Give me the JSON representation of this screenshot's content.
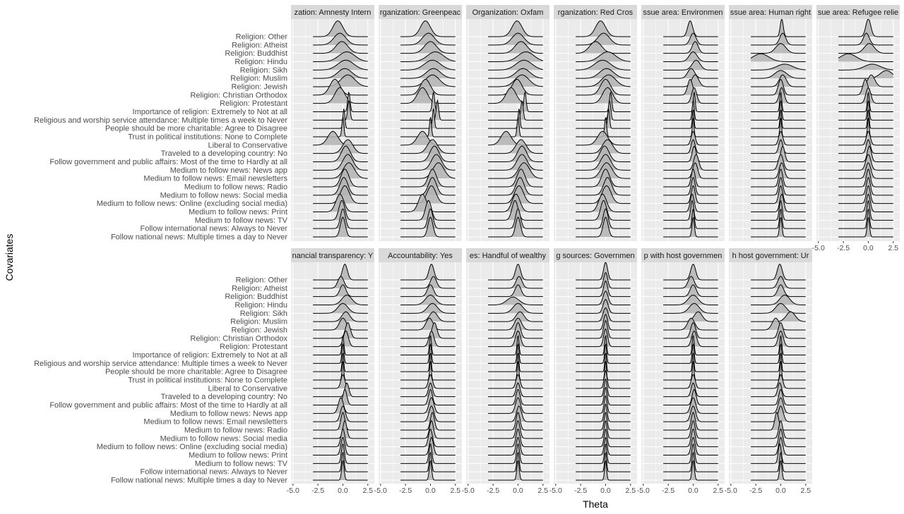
{
  "chart_data": {
    "type": "ridgeline",
    "xlabel": "Theta",
    "ylabel": "Covariates",
    "xlim": [
      -5.0,
      2.5
    ],
    "xticks": [
      "-5.0",
      "-2.5",
      "0.0",
      "2.5"
    ],
    "covariates": [
      "Religion: Other",
      "Religion: Atheist",
      "Religion: Buddhist",
      "Religion: Hindu",
      "Religion: Sikh",
      "Religion: Muslim",
      "Religion: Jewish",
      "Religion: Christian Orthodox",
      "Religion: Protestant",
      "Importance of religion: Extremely to Not at all",
      "Religious and worship service attendance: Multiple times a week to Never",
      "People should be more charitable: Agree to Disagree",
      "Trust in political institutions: None to Complete",
      "Liberal to Conservative",
      "Traveled to a developing country: No",
      "Follow government and public affairs: Most of the time to Hardly at all",
      "Medium to follow news: News app",
      "Medium to follow news: Email newsletters",
      "Medium to follow news: Radio",
      "Medium to follow news: Social media",
      "Medium to follow news: Online (excluding social media)",
      "Medium to follow news: Print",
      "Medium to follow news: TV",
      "Follow international news: Always to Never",
      "Follow national news: Multiple times a day to Never"
    ],
    "panels": [
      {
        "label": "zation: Amnesty Intern",
        "row": 0,
        "col": 0,
        "peaks": [
          -0.5,
          -0.3,
          -0.1,
          0.4,
          0.3,
          0.2,
          0.5,
          -0.8,
          -0.3,
          0.6,
          0.6,
          0.1,
          0.0,
          -1.0,
          0.5,
          0.3,
          0.5,
          0.6,
          0.2,
          0.1,
          0.2,
          -0.3,
          -0.1,
          0.0,
          0.0
        ],
        "widths": [
          0.5,
          0.6,
          0.6,
          0.8,
          0.8,
          0.7,
          0.7,
          0.5,
          0.5,
          0.12,
          0.12,
          0.1,
          0.1,
          0.5,
          0.5,
          0.45,
          0.5,
          0.55,
          0.4,
          0.4,
          0.45,
          0.4,
          0.3,
          0.25,
          0.25
        ],
        "heights": [
          0.8,
          0.6,
          0.6,
          0.5,
          0.5,
          0.5,
          0.6,
          0.8,
          0.8,
          1.0,
          1.0,
          1.0,
          1.0,
          0.7,
          0.7,
          0.8,
          0.8,
          0.8,
          0.9,
          0.9,
          0.9,
          0.9,
          1.0,
          1.0,
          1.0
        ]
      },
      {
        "label": "rganization: Greenpeac",
        "row": 0,
        "col": 1,
        "peaks": [
          -0.5,
          -0.2,
          0.0,
          0.5,
          0.2,
          0.3,
          0.2,
          -0.5,
          -0.8,
          0.3,
          0.7,
          0.3,
          0.0,
          -0.8,
          0.2,
          0.4,
          0.6,
          0.8,
          0.2,
          0.2,
          0.1,
          -0.8,
          -0.2,
          0.0,
          0.0
        ],
        "widths": [
          0.5,
          0.6,
          0.6,
          0.8,
          0.8,
          0.7,
          0.7,
          0.5,
          0.5,
          0.12,
          0.12,
          0.1,
          0.1,
          0.5,
          0.5,
          0.45,
          0.5,
          0.55,
          0.4,
          0.4,
          0.45,
          0.4,
          0.3,
          0.25,
          0.25
        ],
        "heights": [
          0.8,
          0.6,
          0.6,
          0.5,
          0.5,
          0.5,
          0.6,
          0.8,
          0.8,
          1.0,
          1.0,
          1.0,
          1.0,
          0.7,
          0.7,
          0.8,
          0.8,
          0.8,
          0.9,
          0.9,
          0.9,
          0.9,
          1.0,
          1.0,
          1.0
        ]
      },
      {
        "label": "Organization: Oxfam",
        "row": 0,
        "col": 2,
        "peaks": [
          -0.1,
          0.0,
          0.3,
          0.8,
          0.6,
          0.5,
          0.4,
          -0.1,
          -0.7,
          0.7,
          0.4,
          0.1,
          0.0,
          -1.2,
          0.3,
          0.4,
          0.4,
          0.6,
          0.3,
          0.2,
          0.1,
          -0.2,
          -0.3,
          0.0,
          0.0
        ],
        "widths": [
          0.5,
          0.6,
          0.6,
          0.8,
          0.8,
          0.7,
          0.7,
          0.5,
          0.5,
          0.12,
          0.12,
          0.1,
          0.1,
          0.5,
          0.5,
          0.45,
          0.5,
          0.55,
          0.4,
          0.4,
          0.45,
          0.4,
          0.3,
          0.25,
          0.25
        ],
        "heights": [
          0.8,
          0.6,
          0.6,
          0.5,
          0.5,
          0.5,
          0.6,
          0.8,
          0.8,
          1.0,
          1.0,
          1.0,
          1.0,
          0.7,
          0.7,
          0.8,
          0.8,
          0.8,
          0.9,
          0.9,
          0.9,
          0.9,
          1.0,
          1.0,
          1.0
        ]
      },
      {
        "label": "rganization: Red Cros",
        "row": 0,
        "col": 3,
        "peaks": [
          -0.5,
          -0.2,
          -1.0,
          0.2,
          -0.3,
          0.1,
          0.3,
          0.0,
          0.2,
          0.5,
          0.4,
          0.3,
          0.0,
          -0.3,
          0.2,
          -0.1,
          0.0,
          0.1,
          0.0,
          0.2,
          0.1,
          -0.3,
          -0.2,
          0.0,
          0.0
        ],
        "widths": [
          0.5,
          0.6,
          0.6,
          0.8,
          0.8,
          0.7,
          0.7,
          0.5,
          0.5,
          0.12,
          0.12,
          0.1,
          0.1,
          0.5,
          0.5,
          0.45,
          0.5,
          0.55,
          0.4,
          0.4,
          0.45,
          0.4,
          0.3,
          0.25,
          0.25
        ],
        "heights": [
          0.8,
          0.6,
          0.6,
          0.5,
          0.5,
          0.5,
          0.6,
          0.8,
          0.8,
          1.0,
          1.0,
          1.0,
          1.0,
          0.7,
          0.7,
          0.8,
          0.8,
          0.8,
          0.9,
          0.9,
          0.9,
          0.9,
          1.0,
          1.0,
          1.0
        ]
      },
      {
        "label": "ssue area: Environmen",
        "row": 0,
        "col": 4,
        "peaks": [
          -0.3,
          0.0,
          0.2,
          0.0,
          0.3,
          -0.2,
          0.2,
          -0.3,
          0.1,
          0.1,
          0.0,
          0.0,
          0.0,
          0.0,
          0.0,
          0.1,
          0.3,
          0.2,
          0.0,
          0.0,
          0.0,
          -0.1,
          -0.1,
          0.0,
          0.0
        ],
        "widths": [
          0.25,
          0.3,
          0.3,
          0.4,
          0.4,
          0.35,
          0.35,
          0.25,
          0.25,
          0.1,
          0.1,
          0.08,
          0.08,
          0.2,
          0.2,
          0.2,
          0.25,
          0.25,
          0.2,
          0.2,
          0.2,
          0.2,
          0.15,
          0.12,
          0.12
        ],
        "heights": [
          0.8,
          0.6,
          0.6,
          0.5,
          0.5,
          0.5,
          0.6,
          0.8,
          0.8,
          1.0,
          1.0,
          1.0,
          1.0,
          0.7,
          0.7,
          0.8,
          0.8,
          0.8,
          0.9,
          0.9,
          0.9,
          0.9,
          1.0,
          1.0,
          1.0
        ]
      },
      {
        "label": "ssue area: Human right",
        "row": 0,
        "col": 5,
        "peaks": [
          0.1,
          0.2,
          0.0,
          -2.0,
          0.4,
          0.0,
          0.2,
          0.0,
          0.1,
          0.0,
          0.0,
          0.0,
          0.0,
          0.0,
          0.0,
          0.2,
          0.0,
          0.1,
          0.0,
          0.0,
          0.0,
          0.1,
          0.0,
          0.0,
          0.0
        ],
        "widths": [
          0.15,
          0.3,
          0.5,
          0.8,
          0.8,
          0.6,
          0.35,
          0.25,
          0.25,
          0.1,
          0.1,
          0.08,
          0.08,
          0.2,
          0.2,
          0.2,
          0.25,
          0.25,
          0.2,
          0.2,
          0.2,
          0.2,
          0.15,
          0.12,
          0.12
        ],
        "heights": [
          0.9,
          0.6,
          0.5,
          0.4,
          0.3,
          0.4,
          0.6,
          0.8,
          0.8,
          1.0,
          1.0,
          1.0,
          1.0,
          0.7,
          0.7,
          0.8,
          0.8,
          0.8,
          0.9,
          0.9,
          0.9,
          0.9,
          1.0,
          1.0,
          1.0
        ]
      },
      {
        "label": "sue area: Refugee relie",
        "row": 0,
        "col": 6,
        "peaks": [
          0.0,
          -0.2,
          0.1,
          -2.0,
          0.4,
          1.8,
          0.3,
          -0.3,
          0.0,
          0.0,
          0.0,
          0.0,
          0.0,
          0.0,
          0.0,
          0.1,
          0.0,
          0.0,
          0.0,
          0.0,
          0.0,
          0.0,
          0.0,
          0.0,
          0.0
        ],
        "widths": [
          0.25,
          0.3,
          0.5,
          0.8,
          0.8,
          0.6,
          0.35,
          0.25,
          0.25,
          0.1,
          0.1,
          0.08,
          0.08,
          0.2,
          0.2,
          0.2,
          0.25,
          0.25,
          0.2,
          0.2,
          0.2,
          0.2,
          0.15,
          0.12,
          0.12
        ],
        "heights": [
          0.9,
          0.6,
          0.5,
          0.4,
          0.3,
          0.4,
          0.6,
          0.8,
          0.8,
          1.0,
          1.0,
          1.0,
          1.0,
          0.7,
          0.7,
          0.8,
          0.8,
          0.8,
          0.9,
          0.9,
          0.9,
          0.9,
          1.0,
          1.0,
          1.0
        ]
      },
      {
        "label": "nancial transparency: Y",
        "row": 1,
        "col": 0,
        "peaks": [
          0.2,
          -0.2,
          0.0,
          0.4,
          0.0,
          0.3,
          0.0,
          0.5,
          0.3,
          0.0,
          0.0,
          0.0,
          0.0,
          0.0,
          0.4,
          0.2,
          -0.2,
          0.0,
          0.0,
          0.2,
          0.0,
          0.0,
          0.0,
          0.0,
          0.0
        ],
        "widths": [
          0.25,
          0.3,
          0.3,
          0.5,
          0.5,
          0.4,
          0.35,
          0.25,
          0.25,
          0.1,
          0.1,
          0.08,
          0.08,
          0.2,
          0.2,
          0.2,
          0.25,
          0.25,
          0.2,
          0.2,
          0.2,
          0.2,
          0.15,
          0.12,
          0.12
        ],
        "heights": [
          0.8,
          0.6,
          0.6,
          0.5,
          0.5,
          0.5,
          0.6,
          0.8,
          0.8,
          1.0,
          1.0,
          1.0,
          1.0,
          0.7,
          0.7,
          0.8,
          0.8,
          0.8,
          0.9,
          0.9,
          0.9,
          0.9,
          1.0,
          1.0,
          1.0
        ]
      },
      {
        "label": "Accountability: Yes",
        "row": 1,
        "col": 1,
        "peaks": [
          0.1,
          0.3,
          0.0,
          0.0,
          0.2,
          0.3,
          -0.1,
          0.4,
          0.1,
          0.0,
          0.0,
          0.0,
          0.0,
          0.0,
          0.0,
          0.0,
          0.1,
          0.1,
          0.2,
          0.1,
          0.0,
          0.1,
          0.0,
          0.0,
          0.0
        ],
        "widths": [
          0.25,
          0.3,
          0.3,
          0.5,
          0.5,
          0.4,
          0.35,
          0.25,
          0.25,
          0.1,
          0.1,
          0.08,
          0.08,
          0.2,
          0.2,
          0.2,
          0.25,
          0.25,
          0.2,
          0.2,
          0.2,
          0.2,
          0.15,
          0.12,
          0.12
        ],
        "heights": [
          0.8,
          0.6,
          0.6,
          0.5,
          0.5,
          0.5,
          0.6,
          0.8,
          0.8,
          1.0,
          1.0,
          1.0,
          1.0,
          0.7,
          0.7,
          0.8,
          0.8,
          0.8,
          0.9,
          0.9,
          0.9,
          0.9,
          1.0,
          1.0,
          1.0
        ]
      },
      {
        "label": "es: Handful of wealthy",
        "row": 1,
        "col": 2,
        "peaks": [
          0.0,
          0.1,
          0.0,
          -0.5,
          0.0,
          0.2,
          0.0,
          0.0,
          0.0,
          0.0,
          0.0,
          0.0,
          0.0,
          0.0,
          0.0,
          0.0,
          0.0,
          0.1,
          0.0,
          0.0,
          0.0,
          0.0,
          0.0,
          0.0,
          0.0
        ],
        "widths": [
          0.25,
          0.3,
          0.3,
          0.6,
          0.5,
          0.4,
          0.35,
          0.25,
          0.25,
          0.1,
          0.1,
          0.08,
          0.08,
          0.2,
          0.2,
          0.2,
          0.25,
          0.25,
          0.2,
          0.2,
          0.2,
          0.2,
          0.15,
          0.12,
          0.12
        ],
        "heights": [
          0.8,
          0.6,
          0.6,
          0.4,
          0.5,
          0.5,
          0.6,
          0.8,
          0.8,
          1.0,
          1.0,
          1.0,
          1.0,
          0.7,
          0.7,
          0.8,
          0.8,
          0.8,
          0.9,
          0.9,
          0.9,
          0.9,
          1.0,
          1.0,
          1.0
        ]
      },
      {
        "label": "g sources: Governmen",
        "row": 1,
        "col": 3,
        "peaks": [
          0.0,
          0.0,
          0.0,
          0.0,
          0.0,
          0.0,
          0.0,
          0.0,
          0.0,
          0.0,
          0.0,
          0.0,
          0.0,
          0.0,
          0.0,
          0.0,
          0.0,
          0.0,
          0.0,
          0.0,
          0.0,
          0.0,
          0.0,
          0.0,
          0.0
        ],
        "widths": [
          0.2,
          0.2,
          0.2,
          0.25,
          0.25,
          0.25,
          0.2,
          0.2,
          0.2,
          0.1,
          0.1,
          0.08,
          0.08,
          0.15,
          0.15,
          0.15,
          0.15,
          0.15,
          0.15,
          0.15,
          0.15,
          0.15,
          0.12,
          0.1,
          0.1
        ],
        "heights": [
          0.9,
          0.8,
          0.8,
          0.7,
          0.7,
          0.7,
          0.8,
          0.9,
          0.9,
          1.0,
          1.0,
          1.0,
          1.0,
          0.9,
          0.9,
          0.9,
          0.9,
          0.9,
          0.9,
          0.9,
          0.9,
          0.9,
          1.0,
          1.0,
          1.0
        ]
      },
      {
        "label": "p with host governmen",
        "row": 1,
        "col": 4,
        "peaks": [
          0.0,
          -0.2,
          0.0,
          0.0,
          0.1,
          0.5,
          -0.2,
          0.0,
          0.1,
          0.0,
          0.0,
          0.0,
          0.0,
          0.0,
          0.0,
          0.1,
          0.0,
          0.0,
          0.0,
          0.0,
          0.0,
          0.0,
          0.0,
          0.0,
          0.0
        ],
        "widths": [
          0.25,
          0.3,
          0.3,
          0.5,
          0.5,
          0.4,
          0.35,
          0.25,
          0.25,
          0.1,
          0.1,
          0.08,
          0.08,
          0.2,
          0.2,
          0.2,
          0.25,
          0.25,
          0.2,
          0.2,
          0.2,
          0.2,
          0.15,
          0.12,
          0.12
        ],
        "heights": [
          0.8,
          0.6,
          0.6,
          0.5,
          0.5,
          0.5,
          0.6,
          0.8,
          0.8,
          1.0,
          1.0,
          1.0,
          1.0,
          0.7,
          0.7,
          0.8,
          0.8,
          0.8,
          0.9,
          0.9,
          0.9,
          0.9,
          1.0,
          1.0,
          1.0
        ]
      },
      {
        "label": "h host government: Ur",
        "row": 1,
        "col": 5,
        "peaks": [
          -0.1,
          0.0,
          0.0,
          0.4,
          0.0,
          1.0,
          -0.5,
          0.0,
          0.0,
          0.0,
          0.0,
          0.0,
          0.0,
          0.0,
          -0.1,
          0.0,
          0.0,
          0.0,
          -0.4,
          0.0,
          0.0,
          0.0,
          -0.1,
          0.0,
          0.0
        ],
        "widths": [
          0.25,
          0.3,
          0.3,
          0.5,
          0.5,
          0.45,
          0.35,
          0.25,
          0.25,
          0.1,
          0.1,
          0.08,
          0.08,
          0.2,
          0.2,
          0.2,
          0.25,
          0.25,
          0.2,
          0.2,
          0.2,
          0.2,
          0.15,
          0.12,
          0.12
        ],
        "heights": [
          0.8,
          0.6,
          0.6,
          0.5,
          0.5,
          0.5,
          0.6,
          0.8,
          0.8,
          1.0,
          1.0,
          1.0,
          1.0,
          0.7,
          0.7,
          0.8,
          0.8,
          0.8,
          0.9,
          0.9,
          0.9,
          0.9,
          1.0,
          1.0,
          1.0
        ]
      }
    ]
  }
}
